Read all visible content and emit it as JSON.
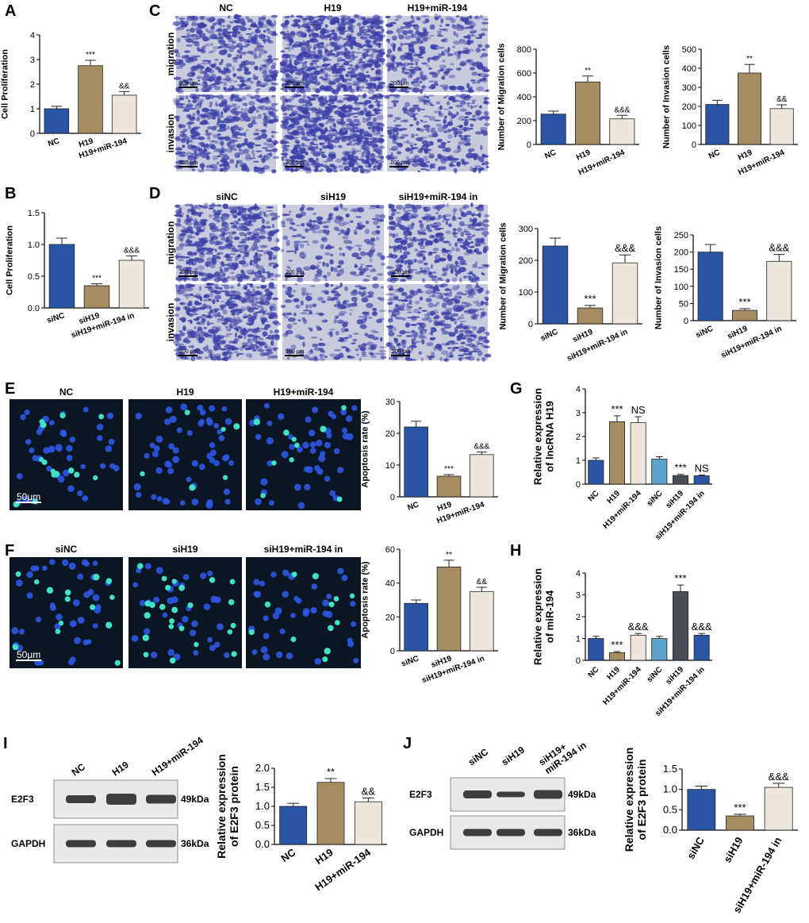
{
  "panels": {
    "A": {
      "letter": "A"
    },
    "B": {
      "letter": "B"
    },
    "C": {
      "letter": "C"
    },
    "D": {
      "letter": "D"
    },
    "E": {
      "letter": "E"
    },
    "F": {
      "letter": "F"
    },
    "G": {
      "letter": "G"
    },
    "H": {
      "letter": "H"
    },
    "I": {
      "letter": "I"
    },
    "J": {
      "letter": "J"
    }
  },
  "colors": {
    "blue": "#2a55a4",
    "tan": "#a58c63",
    "cream": "#ece7da",
    "lightblue": "#5ea3cc",
    "darkgray": "#4a4e57",
    "stain": "#3b3fa8",
    "fluor_blue": "#2e56e6",
    "fluor_green": "#3fe3c4"
  },
  "micrographs": {
    "C": {
      "cols": [
        "NC",
        "H19",
        "H19+miR-194"
      ],
      "rows": [
        "migration",
        "invasion"
      ],
      "scale": "200 μm"
    },
    "D": {
      "cols": [
        "siNC",
        "siH19",
        "siH19+miR-194 in"
      ],
      "rows": [
        "migration",
        "invasion"
      ],
      "scale": "200 μm"
    },
    "E": {
      "cols": [
        "NC",
        "H19",
        "H19+miR-194"
      ],
      "scale": "50μm"
    },
    "F": {
      "cols": [
        "siNC",
        "siH19",
        "siH19+miR-194 in"
      ],
      "scale": "50μm"
    }
  },
  "blots": {
    "I": {
      "lanes": [
        "NC",
        "H19",
        "H19+miR-194"
      ],
      "rows": [
        "E2F3",
        "GAPDH"
      ],
      "sizes": [
        "49kDa",
        "36kDa"
      ]
    },
    "J": {
      "lanes": [
        "siNC",
        "siH19",
        "siH19+\nmiR-194 in"
      ],
      "rows": [
        "E2F3",
        "GAPDH"
      ],
      "sizes": [
        "49kDa",
        "36kDa"
      ]
    }
  },
  "chart_data": [
    {
      "id": "A",
      "type": "bar",
      "categories": [
        "NC",
        "H19",
        "H19+miR-194"
      ],
      "values": [
        1.0,
        2.75,
        1.55
      ],
      "errors": [
        0.1,
        0.22,
        0.15
      ],
      "ylabel": "Cell Proliferation",
      "ylim": [
        0,
        4
      ],
      "yticks": [
        "0",
        "1",
        "2",
        "3",
        "4"
      ],
      "sig": [
        "",
        "***",
        "&&"
      ],
      "colors": [
        "blue",
        "tan",
        "cream"
      ]
    },
    {
      "id": "B",
      "type": "bar",
      "categories": [
        "siNC",
        "siH19",
        "siH19+miR-194 in"
      ],
      "values": [
        1.0,
        0.35,
        0.75
      ],
      "errors": [
        0.1,
        0.03,
        0.07
      ],
      "ylabel": "Cell Proliferation",
      "ylim": [
        0,
        1.5
      ],
      "yticks": [
        "0.0",
        "0.5",
        "1.0",
        "1.5"
      ],
      "sig": [
        "",
        "***",
        "&&&"
      ],
      "colors": [
        "blue",
        "tan",
        "cream"
      ]
    },
    {
      "id": "C1",
      "type": "bar",
      "categories": [
        "NC",
        "H19",
        "H19+miR-194"
      ],
      "values": [
        255,
        525,
        215
      ],
      "errors": [
        25,
        50,
        30
      ],
      "ylabel": "Number of Migration cells",
      "ylim": [
        0,
        800
      ],
      "yticks": [
        "0",
        "200",
        "400",
        "600",
        "800"
      ],
      "sig": [
        "",
        "**",
        "&&&"
      ],
      "colors": [
        "blue",
        "tan",
        "cream"
      ]
    },
    {
      "id": "C2",
      "type": "bar",
      "categories": [
        "NC",
        "H19",
        "H19+miR-194"
      ],
      "values": [
        210,
        375,
        188
      ],
      "errors": [
        22,
        45,
        20
      ],
      "ylabel": "Number of Invasion cells",
      "ylim": [
        0,
        500
      ],
      "yticks": [
        "0",
        "100",
        "200",
        "300",
        "400",
        "500"
      ],
      "sig": [
        "",
        "**",
        "&&"
      ],
      "colors": [
        "blue",
        "tan",
        "cream"
      ]
    },
    {
      "id": "D1",
      "type": "bar",
      "categories": [
        "siNC",
        "siH19",
        "siH19+miR-194 in"
      ],
      "values": [
        245,
        50,
        192
      ],
      "errors": [
        25,
        8,
        25
      ],
      "ylabel": "Number of Migration cells",
      "ylim": [
        0,
        300
      ],
      "yticks": [
        "0",
        "100",
        "200",
        "300"
      ],
      "sig": [
        "",
        "***",
        "&&&"
      ],
      "colors": [
        "blue",
        "tan",
        "cream"
      ]
    },
    {
      "id": "D2",
      "type": "bar",
      "categories": [
        "siNC",
        "siH19",
        "siH19+miR-194 in"
      ],
      "values": [
        200,
        30,
        173
      ],
      "errors": [
        22,
        5,
        20
      ],
      "ylabel": "Number of Invasion cells",
      "ylim": [
        0,
        250
      ],
      "yticks": [
        "0",
        "50",
        "100",
        "150",
        "200",
        "250"
      ],
      "sig": [
        "",
        "***",
        "&&&"
      ],
      "colors": [
        "blue",
        "tan",
        "cream"
      ]
    },
    {
      "id": "E",
      "type": "bar",
      "categories": [
        "NC",
        "H19",
        "H19+miR-194"
      ],
      "values": [
        22,
        6.5,
        13.3
      ],
      "errors": [
        1.8,
        0.5,
        0.8
      ],
      "ylabel": "Apoptosis rate (%)",
      "ylim": [
        0,
        30
      ],
      "yticks": [
        "0",
        "10",
        "20",
        "30"
      ],
      "sig": [
        "",
        "***",
        "&&&"
      ],
      "colors": [
        "blue",
        "tan",
        "cream"
      ]
    },
    {
      "id": "F",
      "type": "bar",
      "categories": [
        "siNC",
        "siH19",
        "siH19+miR-194 in"
      ],
      "values": [
        28,
        49.5,
        35
      ],
      "errors": [
        2,
        4,
        2.5
      ],
      "ylabel": "Apoptosis rate (%)",
      "ylim": [
        0,
        60
      ],
      "yticks": [
        "0",
        "20",
        "40",
        "60"
      ],
      "sig": [
        "",
        "**",
        "&&"
      ],
      "colors": [
        "blue",
        "tan",
        "cream"
      ]
    },
    {
      "id": "G",
      "type": "bar",
      "categories": [
        "NC",
        "H19",
        "H19+miR-194",
        "siNC",
        "siH19",
        "siH19+miR-194 in"
      ],
      "values": [
        1.0,
        2.62,
        2.58,
        1.05,
        0.36,
        0.35
      ],
      "errors": [
        0.1,
        0.25,
        0.25,
        0.1,
        0.05,
        0.03
      ],
      "ylabel": [
        "Relative expression",
        "of lncRNA H19"
      ],
      "ylim": [
        0,
        4
      ],
      "yticks": [
        "0",
        "1",
        "2",
        "3",
        "4"
      ],
      "sig": [
        "",
        "***",
        "NS",
        "",
        "***",
        "NS"
      ],
      "colors": [
        "blue",
        "tan",
        "cream",
        "lightblue",
        "darkgray",
        "blue"
      ]
    },
    {
      "id": "H",
      "type": "bar",
      "categories": [
        "NC",
        "H19",
        "H19+miR-194",
        "siNC",
        "siH19",
        "siH19+miR-194 in"
      ],
      "values": [
        1.0,
        0.35,
        1.15,
        1.0,
        3.15,
        1.15
      ],
      "errors": [
        0.1,
        0.05,
        0.08,
        0.1,
        0.3,
        0.08
      ],
      "ylabel": [
        "Relative expression",
        "of miR-194"
      ],
      "ylim": [
        0,
        4
      ],
      "yticks": [
        "0",
        "1",
        "2",
        "3",
        "4"
      ],
      "sig": [
        "",
        "***",
        "&&&",
        "",
        "***",
        "&&&"
      ],
      "colors": [
        "blue",
        "tan",
        "cream",
        "lightblue",
        "darkgray",
        "blue"
      ]
    },
    {
      "id": "I",
      "type": "bar",
      "categories": [
        "NC",
        "H19",
        "H19+miR-194"
      ],
      "values": [
        1.0,
        1.63,
        1.12
      ],
      "errors": [
        0.08,
        0.1,
        0.1
      ],
      "ylabel": [
        "Relative expression",
        "of E2F3 protein"
      ],
      "ylim": [
        0,
        2.0
      ],
      "yticks": [
        "0.0",
        "0.5",
        "1.0",
        "1.5",
        "2.0"
      ],
      "sig": [
        "",
        "**",
        "&&"
      ],
      "colors": [
        "blue",
        "tan",
        "cream"
      ]
    },
    {
      "id": "J",
      "type": "bar",
      "categories": [
        "siNC",
        "siH19",
        "siH19+miR-194 in"
      ],
      "values": [
        1.0,
        0.35,
        1.05
      ],
      "errors": [
        0.08,
        0.04,
        0.1
      ],
      "ylabel": [
        "Relative expression",
        "of E2F3 protein"
      ],
      "ylim": [
        0,
        1.5
      ],
      "yticks": [
        "0.0",
        "0.5",
        "1.0",
        "1.5"
      ],
      "sig": [
        "",
        "***",
        "&&&"
      ],
      "colors": [
        "blue",
        "tan",
        "cream"
      ]
    }
  ]
}
